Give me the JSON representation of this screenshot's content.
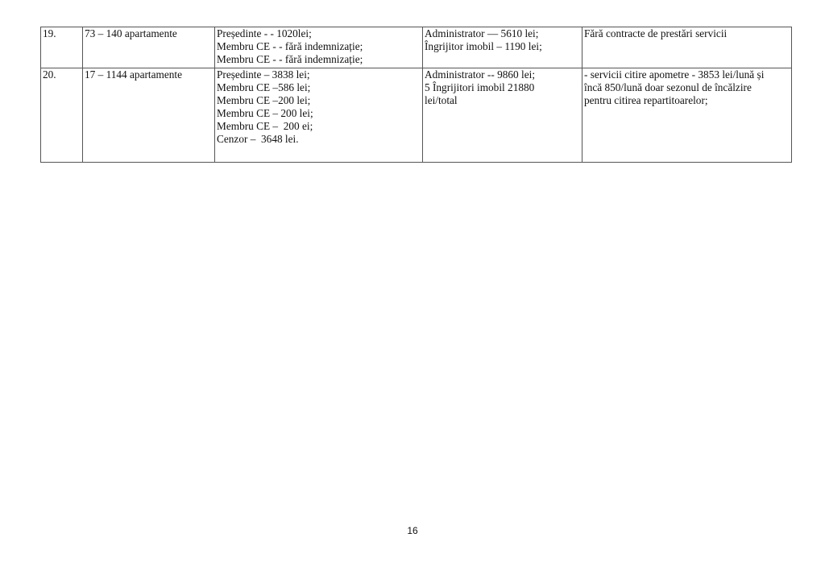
{
  "table": {
    "rows": [
      {
        "num": "19.",
        "apartments": "73 – 140 apartamente",
        "committee": [
          "Președinte - - 1020lei;",
          "Membru CE - - fără indemnizație;",
          "Membru CE - - fără indemnizație;"
        ],
        "staff": [
          "Administrator — 5610 lei;",
          "Îngrijitor imobil – 1190 lei;"
        ],
        "services": [
          "Fără contracte de prestări servicii"
        ]
      },
      {
        "num": "20.",
        "apartments": "17 – 1144 apartamente",
        "committee": [
          "Președinte – 3838 lei;",
          "Membru CE –586 lei;",
          "Membru CE –200 lei;",
          "Membru CE – 200 lei;",
          "Membru CE –  200 ei;",
          "Cenzor –  3648 lei."
        ],
        "staff": [
          "Administrator -- 9860 lei;",
          "5 Îngrijitori imobil 21880",
          "lei/total"
        ],
        "services": [
          "- servicii citire apometre - 3853 lei/lună și",
          "încă 850/lună doar sezonul de încălzire",
          "pentru citirea repartitoarelor;"
        ]
      }
    ]
  },
  "page_number": "16"
}
